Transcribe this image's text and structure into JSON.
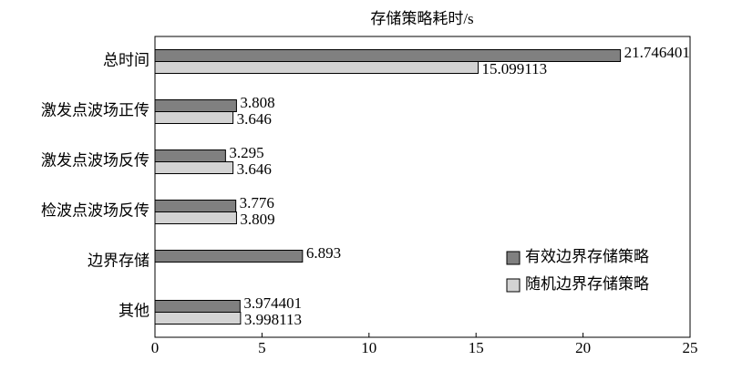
{
  "chart_data": {
    "type": "hbar",
    "title": "存储策略耗时/s",
    "categories": [
      "总时间",
      "激发点波场正传",
      "激发点波场反传",
      "检波点波场反传",
      "边界存储",
      "其他"
    ],
    "series": [
      {
        "name": "有效边界存储策略",
        "color": "#808080",
        "values": [
          21.746401,
          3.808,
          3.295,
          3.776,
          6.893,
          3.974401
        ]
      },
      {
        "name": "随机边界存储策略",
        "color": "#d3d3d3",
        "values": [
          15.099113,
          3.646,
          3.646,
          3.809,
          null,
          3.998113
        ]
      }
    ],
    "xlim": [
      0,
      25
    ],
    "xticks": [
      0,
      5,
      10,
      15,
      20,
      25
    ],
    "legend": "lower right"
  }
}
